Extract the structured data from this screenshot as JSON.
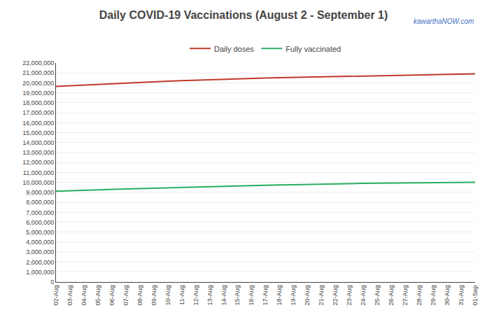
{
  "chart_data": {
    "type": "line",
    "title": "Daily COVID-19 Vaccinations (August 2 - September 1)",
    "annotations": [
      {
        "text": "kawarthaNOW.com",
        "color": "#4472c4"
      }
    ],
    "categories": [
      "02-Aug",
      "03-Aug",
      "04-Aug",
      "05-Aug",
      "06-Aug",
      "07-Aug",
      "08-Aug",
      "09-Aug",
      "10-Aug",
      "11-Aug",
      "12-Aug",
      "13-Aug",
      "14-Aug",
      "15-Aug",
      "16-Aug",
      "17-Aug",
      "18-Aug",
      "19-Aug",
      "20-Aug",
      "21-Aug",
      "22-Aug",
      "23-Aug",
      "24-Aug",
      "25-Aug",
      "26-Aug",
      "27-Aug",
      "28-Aug",
      "29-Aug",
      "30-Aug",
      "31-Aug",
      "01-Sep"
    ],
    "series": [
      {
        "name": "Daily doses",
        "color": "#c0392b",
        "values": [
          19650000,
          19720000,
          19800000,
          19880000,
          19950000,
          20010000,
          20060000,
          20120000,
          20175000,
          20225000,
          20275000,
          20325000,
          20375000,
          20415000,
          20455000,
          20490000,
          20520000,
          20550000,
          20585000,
          20620000,
          20655000,
          20685000,
          20715000,
          20735000,
          20758000,
          20778000,
          20808000,
          20838000,
          20858000,
          20878000,
          20910000
        ]
      },
      {
        "name": "Fully vaccinated",
        "color": "#27ae60",
        "values": [
          9120000,
          9155000,
          9200000,
          9250000,
          9295000,
          9340000,
          9385000,
          9425000,
          9462000,
          9500000,
          9540000,
          9578000,
          9615000,
          9652000,
          9688000,
          9718000,
          9745000,
          9772000,
          9808000,
          9838000,
          9865000,
          9885000,
          9905000,
          9920000,
          9935000,
          9948000,
          9960000,
          9973000,
          9983000,
          9995000,
          10010000
        ]
      }
    ],
    "ylim": [
      0,
      22000000
    ],
    "yticks": [
      0,
      {
        "value": 1000000,
        "label": "1,000,000"
      },
      {
        "value": 2000000,
        "label": "2,000,000"
      },
      {
        "value": 3000000,
        "label": "3,000,000"
      },
      {
        "value": 4000000,
        "label": "4,000,000"
      },
      {
        "value": 5000000,
        "label": "5,000,000"
      },
      {
        "value": 6000000,
        "label": "6,000,000"
      },
      {
        "value": 7000000,
        "label": "7,000,000"
      },
      {
        "value": 8000000,
        "label": "8,000,000"
      },
      {
        "value": 9000000,
        "label": "9,000,000"
      },
      {
        "value": 10000000,
        "label": "10,000,000"
      },
      {
        "value": 11000000,
        "label": "11,000,000"
      },
      {
        "value": 12000000,
        "label": "12,000,000"
      },
      {
        "value": 13000000,
        "label": "13,000,000"
      },
      {
        "value": 14000000,
        "label": "14,000,000"
      },
      {
        "value": 15000000,
        "label": "15,000,000"
      },
      {
        "value": 16000000,
        "label": "16,000,000"
      },
      {
        "value": 17000000,
        "label": "17,000,000"
      },
      {
        "value": 18000000,
        "label": "18,000,000"
      },
      {
        "value": 19000000,
        "label": "19,000,000"
      },
      {
        "value": 20000000,
        "label": "20,000,000"
      },
      {
        "value": 21000000,
        "label": "21,000,000"
      },
      {
        "value": 22000000,
        "label": "22,000,000"
      }
    ],
    "grid": "y",
    "legend": "top"
  }
}
